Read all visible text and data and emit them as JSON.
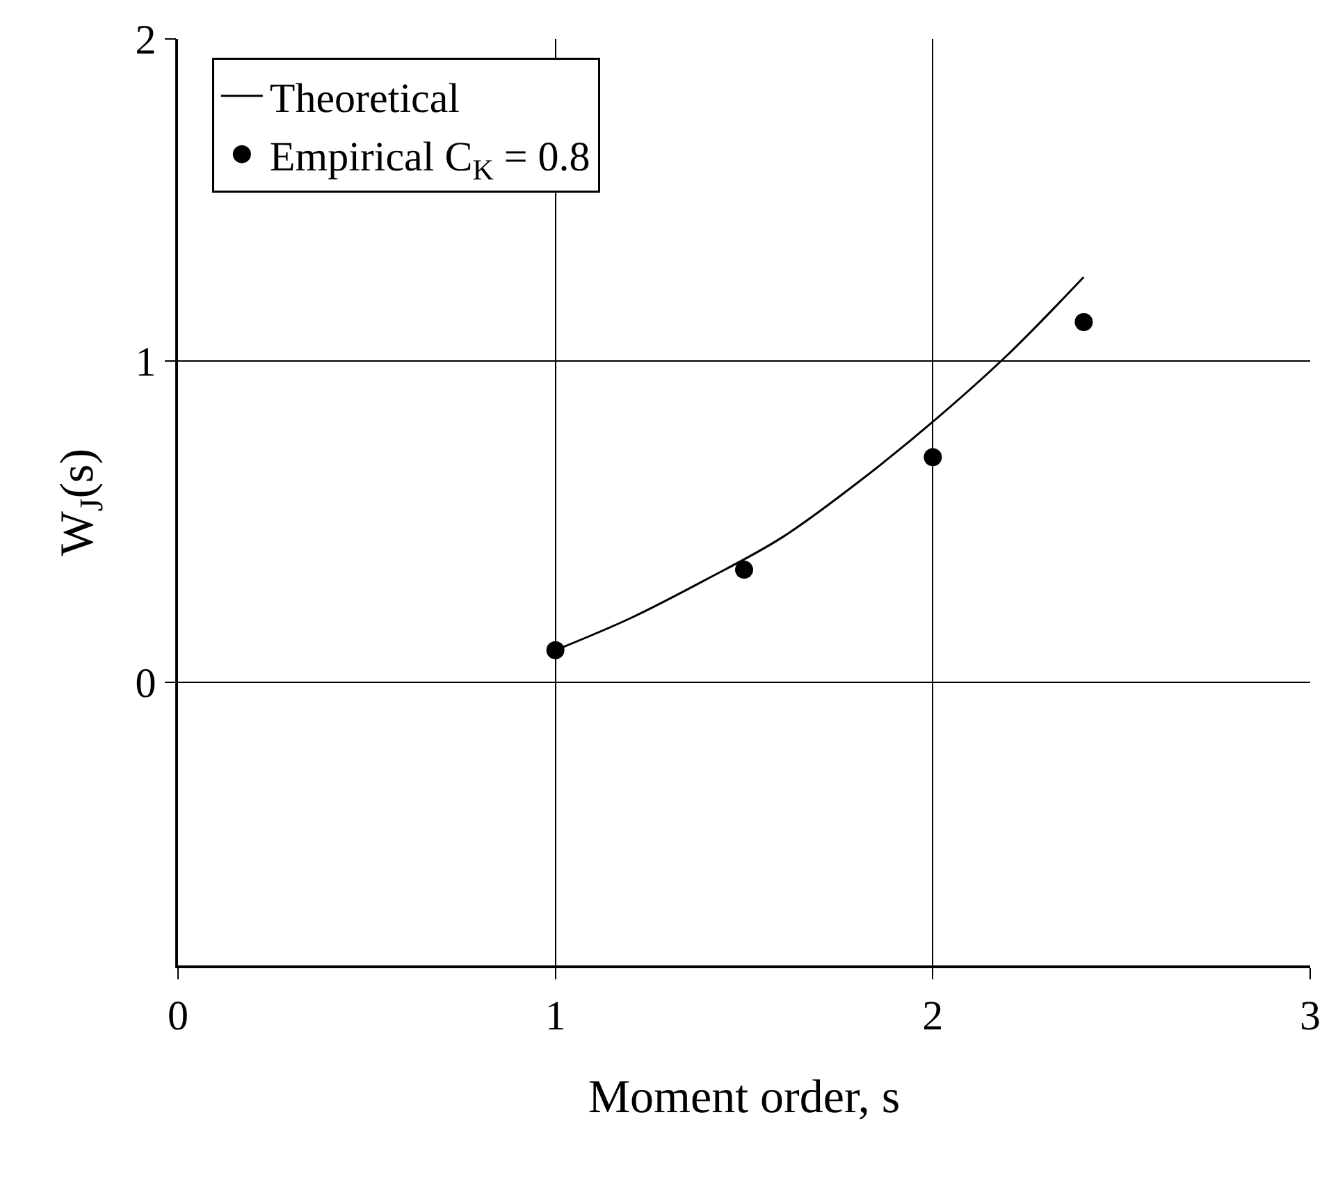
{
  "chart_data": {
    "type": "scatter",
    "xlabel": "Moment order, s",
    "ylabel": "W$_{J}$(s)",
    "xlim": [
      0,
      3
    ],
    "xticks": [
      0,
      1,
      2,
      3
    ],
    "ylim": [
      -0.88,
      2
    ],
    "yticks": [
      0,
      1,
      2
    ],
    "grid": true,
    "legend": "top left",
    "series": [
      {
        "name": "Theoretical",
        "type": "line",
        "marker": "none",
        "color": "#000000",
        "line_style": "solid",
        "x": [
          1,
          1.2,
          1.4,
          1.6,
          1.8,
          2,
          2.2,
          2.4
        ],
        "values": [
          0.1,
          0.2,
          0.32,
          0.45,
          0.62,
          0.81,
          1.02,
          1.26
        ]
      },
      {
        "name": "Empirical C$_{K}$ = 0.8",
        "marker": "circle",
        "color": "#000000",
        "x": [
          1,
          1.5,
          2,
          2.4
        ],
        "values": [
          0.1,
          0.35,
          0.7,
          1.12
        ]
      }
    ]
  }
}
